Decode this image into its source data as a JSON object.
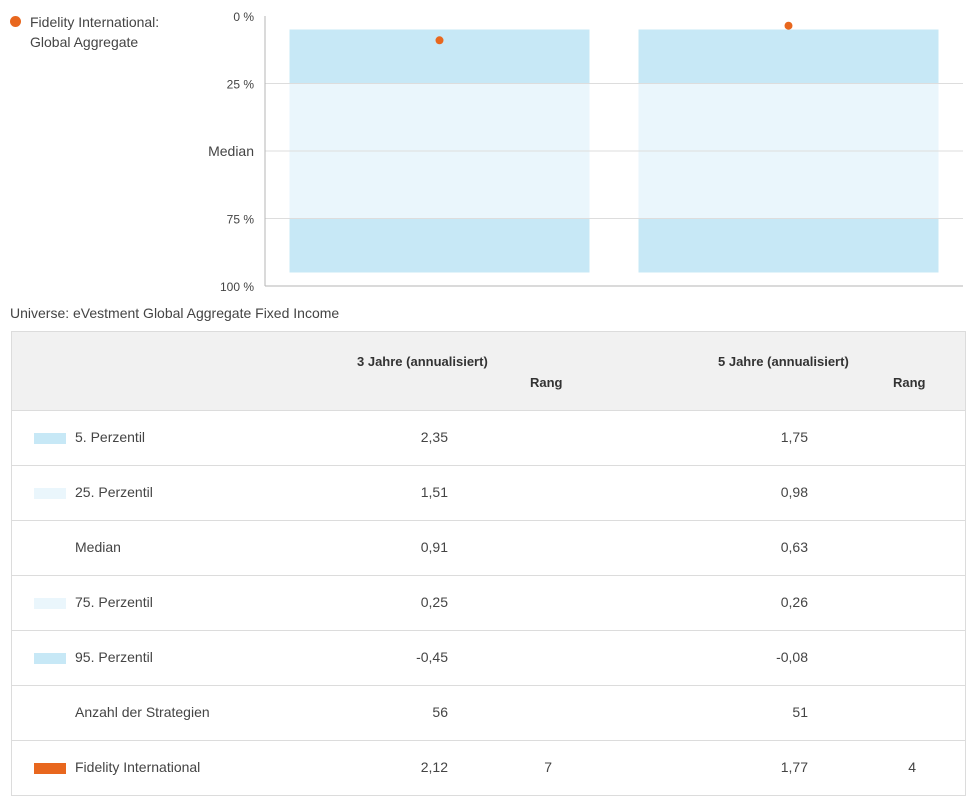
{
  "colors": {
    "outer": "#c7e8f6",
    "inner": "#eaf6fc",
    "fidelity": "#e8671e",
    "grid": "#dddddd"
  },
  "legend": {
    "label_line1": "Fidelity International:",
    "label_line2": "Global Aggregate"
  },
  "chart_data": {
    "type": "box",
    "title": "",
    "y_axis": {
      "ticks": [
        "0 %",
        "25 %",
        "Median",
        "75 %",
        "100 %"
      ],
      "tick_values": [
        0,
        25,
        50,
        75,
        100
      ],
      "inverted": true,
      "range": [
        0,
        100
      ]
    },
    "periods": [
      {
        "name": "3 Jahre (annualisiert)",
        "p5": 5,
        "p25": 25,
        "p50": 50,
        "p75": 75,
        "p95": 95,
        "fidelity_rank_pct": 9
      },
      {
        "name": "5 Jahre (annualisiert)",
        "p5": 5,
        "p25": 25,
        "p50": 50,
        "p75": 75,
        "p95": 95,
        "fidelity_rank_pct": 3.6
      }
    ]
  },
  "universe_label": "Universe: eVestment Global Aggregate Fixed Income",
  "table": {
    "header": {
      "period3": "3 Jahre (annualisiert)",
      "rank3": "Rang",
      "period5": "5 Jahre (annualisiert)",
      "rank5": "Rang"
    },
    "rows": [
      {
        "label": "5. Perzentil",
        "swatch": "outer",
        "v3": "2,35",
        "r3": "",
        "v5": "1,75",
        "r5": ""
      },
      {
        "label": "25. Perzentil",
        "swatch": "inner",
        "v3": "1,51",
        "r3": "",
        "v5": "0,98",
        "r5": ""
      },
      {
        "label": "Median",
        "swatch": "",
        "v3": "0,91",
        "r3": "",
        "v5": "0,63",
        "r5": ""
      },
      {
        "label": "75. Perzentil",
        "swatch": "inner",
        "v3": "0,25",
        "r3": "",
        "v5": "0,26",
        "r5": ""
      },
      {
        "label": "95. Perzentil",
        "swatch": "outer",
        "v3": "-0,45",
        "r3": "",
        "v5": "-0,08",
        "r5": ""
      },
      {
        "label": "Anzahl der Strategien",
        "swatch": "",
        "v3": "56",
        "r3": "",
        "v5": "51",
        "r5": ""
      },
      {
        "label": "Fidelity International",
        "swatch": "fidelity",
        "v3": "2,12",
        "r3": "7",
        "v5": "1,77",
        "r5": "4"
      }
    ]
  }
}
